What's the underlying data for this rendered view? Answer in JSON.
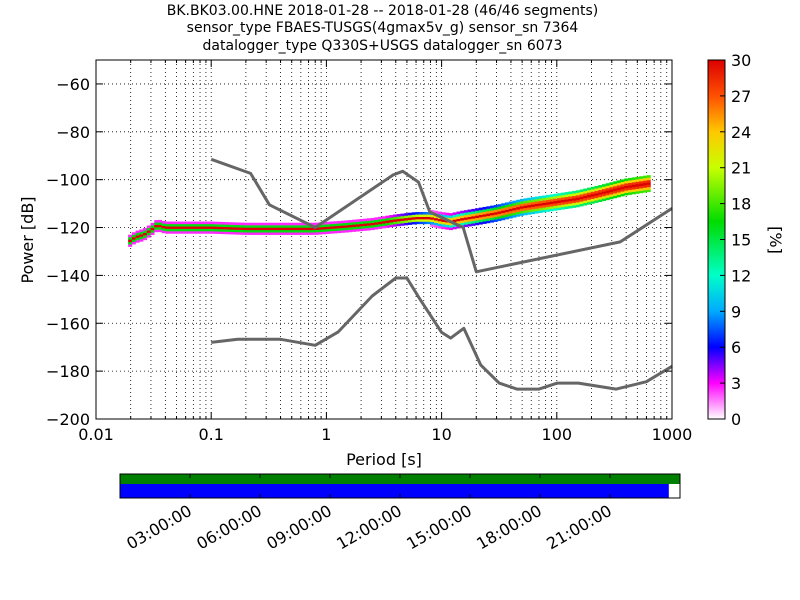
{
  "title_lines": [
    "BK.BK03.00.HNE   2018-01-28 -- 2018-01-28  (46/46 segments)",
    "sensor_type FBAES-TUSGS(4gmax5v_g) sensor_sn 7364",
    "datalogger_type Q330S+USGS datalogger_sn 6073"
  ],
  "chart_data": {
    "type": "heatmap",
    "xlabel": "Period [s]",
    "ylabel": "Power [dB]",
    "x_scale": "log",
    "xlim": [
      0.01,
      1000
    ],
    "ylim": [
      -200,
      -50
    ],
    "x_ticks": [
      0.01,
      0.1,
      1,
      10,
      100,
      1000
    ],
    "x_tick_labels": [
      "0.01",
      "0.1",
      "1",
      "10",
      "100",
      "1000"
    ],
    "y_ticks": [
      -60,
      -80,
      -100,
      -120,
      -140,
      -160,
      -180,
      -200
    ],
    "y_tick_labels": [
      "−60",
      "−80",
      "−100",
      "−120",
      "−140",
      "−160",
      "−180",
      "−200"
    ],
    "grid": "dotted",
    "colorbar": {
      "label": "[%]",
      "min": 0,
      "max": 30,
      "ticks": [
        0,
        3,
        6,
        9,
        12,
        15,
        18,
        21,
        24,
        27,
        30
      ],
      "tick_labels": [
        "0",
        "3",
        "6",
        "9",
        "12",
        "15",
        "18",
        "21",
        "24",
        "27",
        "30"
      ]
    },
    "noise_models": [
      {
        "x": [
          0.1,
          0.22,
          0.32,
          0.8,
          3.8,
          4.6,
          6.3,
          7.9,
          15.4,
          20,
          354.8,
          1000
        ],
        "y": [
          -91.5,
          -97.4,
          -110.5,
          -120,
          -98,
          -96.5,
          -101,
          -113.5,
          -120,
          -138.5,
          -126,
          -112
        ]
      },
      {
        "x": [
          0.1,
          0.17,
          0.4,
          0.8,
          1.26,
          2.5,
          4,
          5,
          6.3,
          10,
          12,
          15.6,
          21.9,
          31.6,
          45,
          70,
          101,
          154,
          328,
          600,
          1000
        ],
        "y": [
          -168,
          -166.7,
          -166.7,
          -169.2,
          -163.7,
          -148.6,
          -141.1,
          -141.1,
          -149,
          -163.8,
          -166.2,
          -162.1,
          -177.5,
          -185,
          -187.5,
          -187.5,
          -185,
          -185,
          -187.5,
          -184.4,
          -178
        ]
      }
    ],
    "density_trace": {
      "x": [
        0.019,
        0.022,
        0.026,
        0.03,
        0.034,
        0.04,
        0.06,
        0.1,
        0.2,
        0.4,
        0.8,
        1.5,
        2.5,
        4,
        6,
        8,
        10,
        12,
        15,
        20,
        30,
        50,
        80,
        150,
        250,
        400,
        650
      ],
      "y": [
        -126,
        -124,
        -123,
        -121,
        -119,
        -120,
        -120,
        -120,
        -120.5,
        -120.5,
        -120.5,
        -119.5,
        -118.5,
        -117,
        -116,
        -116,
        -117,
        -117.5,
        -116.5,
        -115.5,
        -114,
        -111.5,
        -110,
        -108,
        -105.5,
        -103,
        -101.5
      ]
    },
    "segments_timeline": {
      "time_ticks": [
        "03:00:00",
        "06:00:00",
        "09:00:00",
        "12:00:00",
        "15:00:00",
        "18:00:00",
        "21:00:00"
      ],
      "coverage_fraction": 0.98,
      "data_color": "#008000",
      "psd_color": "#0000ff"
    }
  }
}
